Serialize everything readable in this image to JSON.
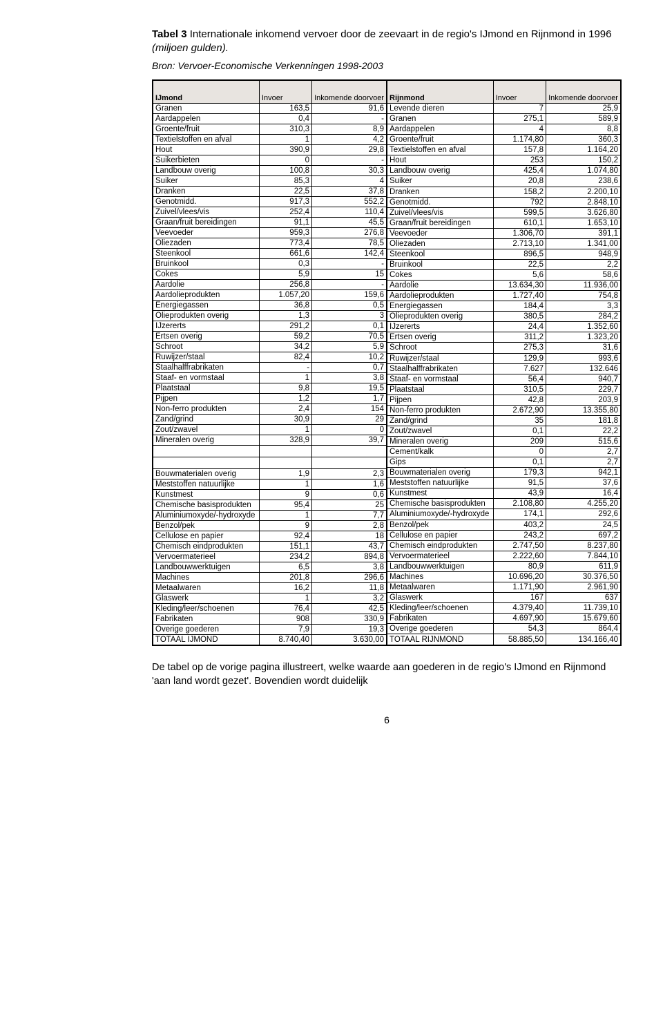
{
  "title_bold": "Tabel 3",
  "title_rest": " Internationale inkomend vervoer door de zeevaart in de regio's IJmond en Rijnmond in 1996 ",
  "title_italic": "(miljoen gulden).",
  "source": "Bron: Vervoer-Economische Verkenningen 1998-2003",
  "headers": {
    "region_left": "IJmond",
    "region_right": "Rijnmond",
    "col_invoer": "Invoer",
    "col_doorvoer": "Inkomende doorvoer"
  },
  "left_rows": [
    [
      "Granen",
      "163,5",
      "91,6"
    ],
    [
      "Aardappelen",
      "0,4",
      "-"
    ],
    [
      "Groente/fruit",
      "310,3",
      "8,9"
    ],
    [
      "Textielstoffen en afval",
      "1",
      "4,2"
    ],
    [
      "Hout",
      "390,9",
      "29,8"
    ],
    [
      "Suikerbieten",
      "0",
      "-"
    ],
    [
      "Landbouw overig",
      "100,8",
      "30,3"
    ],
    [
      "Suiker",
      "85,3",
      "4"
    ],
    [
      "Dranken",
      "22,5",
      "37,8"
    ],
    [
      "Genotmidd.",
      "917,3",
      "552,2"
    ],
    [
      "Zuivel/vlees/vis",
      "252,4",
      "110,4"
    ],
    [
      "Graan/fruit bereidingen",
      "91,1",
      "45,5"
    ],
    [
      "Veevoeder",
      "959,3",
      "276,8"
    ],
    [
      "Oliezaden",
      "773,4",
      "78,5"
    ],
    [
      "Steenkool",
      "661,6",
      "142,4"
    ],
    [
      "Bruinkool",
      "0,3",
      "-"
    ],
    [
      "Cokes",
      "5,9",
      "15"
    ],
    [
      "Aardolie",
      "256,8",
      "-"
    ],
    [
      "Aardolieprodukten",
      "1.057,20",
      "159,6"
    ],
    [
      "Energiegassen",
      "36,8",
      "0,5"
    ],
    [
      "Olieprodukten overig",
      "1,3",
      "3"
    ],
    [
      "IJzererts",
      "291,2",
      "0,1"
    ],
    [
      "Ertsen overig",
      "59,2",
      "70,5"
    ],
    [
      "Schroot",
      "34,2",
      "5,9"
    ],
    [
      "Ruwijzer/staal",
      "82,4",
      "10,2"
    ],
    [
      "Staalhalffrabrikaten",
      "-",
      "0,7"
    ],
    [
      "Staaf- en vormstaal",
      "1",
      "3,8"
    ],
    [
      "Plaatstaal",
      "9,8",
      "19,5"
    ],
    [
      "Pijpen",
      "1,2",
      "1,7"
    ],
    [
      "Non-ferro produkten",
      "2,4",
      "154"
    ],
    [
      "Zand/grind",
      "30,9",
      "29"
    ],
    [
      "Zout/zwavel",
      "1",
      "0"
    ],
    [
      "Mineralen overig",
      "328,9",
      "39,7"
    ],
    [
      "",
      "",
      ""
    ],
    [
      "",
      "",
      ""
    ],
    [
      "Bouwmaterialen overig",
      "1,9",
      "2,3"
    ],
    [
      "Meststoffen natuurlijke",
      "1",
      "1,6"
    ],
    [
      "Kunstmest",
      "9",
      "0,6"
    ],
    [
      "Chemische basisprodukten",
      "95,4",
      "25"
    ],
    [
      "Aluminiumoxyde/-hydroxyde",
      "1",
      "7,7"
    ],
    [
      "Benzol/pek",
      "9",
      "2,8"
    ],
    [
      "Cellulose en papier",
      "92,4",
      "18"
    ],
    [
      "Chemisch eindprodukten",
      "151,1",
      "43,7"
    ],
    [
      "Vervoermaterieel",
      "234,2",
      "894,8"
    ],
    [
      "Landbouwwerktuigen",
      "6,5",
      "3,8"
    ],
    [
      "Machines",
      "201,8",
      "296,6"
    ],
    [
      "Metaalwaren",
      "16,2",
      "11,8"
    ],
    [
      "Glaswerk",
      "1",
      "3,2"
    ],
    [
      "Kleding/leer/schoenen",
      "76,4",
      "42,5"
    ],
    [
      "Fabrikaten",
      "908",
      "330,9"
    ],
    [
      "Overige goederen",
      "7,9",
      "19,3"
    ]
  ],
  "left_total": [
    "TOTAAL IJMOND",
    "8.740,40",
    "3.630,00"
  ],
  "right_rows": [
    [
      "Levende dieren",
      "7",
      "25,9"
    ],
    [
      "Granen",
      "275,1",
      "589,9"
    ],
    [
      "Aardappelen",
      "4",
      "8,8"
    ],
    [
      "Groente/fruit",
      "1.174,80",
      "360,3"
    ],
    [
      "Textielstoffen en afval",
      "157,8",
      "1.164,20"
    ],
    [
      "Hout",
      "253",
      "150,2"
    ],
    [
      "Landbouw overig",
      "425,4",
      "1.074,80"
    ],
    [
      "Suiker",
      "20,8",
      "238,6"
    ],
    [
      "Dranken",
      "158,2",
      "2.200,10"
    ],
    [
      "Genotmidd.",
      "792",
      "2.848,10"
    ],
    [
      "Zuivel/vlees/vis",
      "599,5",
      "3.626,80"
    ],
    [
      "Graan/fruit bereidingen",
      "610,1",
      "1.653,10"
    ],
    [
      "Veevoeder",
      "1.306,70",
      "391,1"
    ],
    [
      "Oliezaden",
      "2.713,10",
      "1.341,00"
    ],
    [
      "Steenkool",
      "896,5",
      "948,9"
    ],
    [
      "Bruinkool",
      "22,5",
      "2,2"
    ],
    [
      "Cokes",
      "5,6",
      "58,6"
    ],
    [
      "Aardolie",
      "13.634,30",
      "11.936,00"
    ],
    [
      "Aardolieprodukten",
      "1.727,40",
      "754,8"
    ],
    [
      "Energiegassen",
      "184,4",
      "3,3"
    ],
    [
      "Olieprodukten overig",
      "380,5",
      "284,2"
    ],
    [
      "IJzererts",
      "24,4",
      "1.352,60"
    ],
    [
      "Ertsen overig",
      "311,2",
      "1.323,20"
    ],
    [
      "Schroot",
      "275,3",
      "31,6"
    ],
    [
      "Ruwijzer/staal",
      "129,9",
      "993,6"
    ],
    [
      "Staalhalffrabrikaten",
      "7.627",
      "132.646"
    ],
    [
      "Staaf- en vormstaal",
      "56,4",
      "940,7"
    ],
    [
      "Plaatstaal",
      "310,5",
      "229,7"
    ],
    [
      "Pijpen",
      "42,8",
      "203,9"
    ],
    [
      "Non-ferro produkten",
      "2.672,90",
      "13.355,80"
    ],
    [
      "Zand/grind",
      "35",
      "181,8"
    ],
    [
      "Zout/zwavel",
      "0,1",
      "22,2"
    ],
    [
      "Mineralen overig",
      "209",
      "515,6"
    ],
    [
      "Cement/kalk",
      "0",
      "2,7"
    ],
    [
      "Gips",
      "0,1",
      "2,7"
    ],
    [
      "Bouwmaterialen overig",
      "179,3",
      "942,1"
    ],
    [
      "Meststoffen natuurlijke",
      "91,5",
      "37,6"
    ],
    [
      "Kunstmest",
      "43,9",
      "16,4"
    ],
    [
      "Chemische basisprodukten",
      "2.108,80",
      "4.255,20"
    ],
    [
      "Aluminiumoxyde/-hydroxyde",
      "174,1",
      "292,6"
    ],
    [
      "Benzol/pek",
      "403,2",
      "24,5"
    ],
    [
      "Cellulose en papier",
      "243,2",
      "697,2"
    ],
    [
      "Chemisch eindprodukten",
      "2.747,50",
      "8.237,80"
    ],
    [
      "Vervoermaterieel",
      "2.222,60",
      "7.844,10"
    ],
    [
      "Landbouwwerktuigen",
      "80,9",
      "611,9"
    ],
    [
      "Machines",
      "10.696,20",
      "30.376,50"
    ],
    [
      "Metaalwaren",
      "1.171,90",
      "2.961,90"
    ],
    [
      "Glaswerk",
      "167",
      "637"
    ],
    [
      "Kleding/leer/schoenen",
      "4.379,40",
      "11.739,10"
    ],
    [
      "Fabrikaten",
      "4.697,90",
      "15.679,60"
    ],
    [
      "Overige goederen",
      "54,3",
      "864,4"
    ]
  ],
  "right_total": [
    "TOTAAL RIJNMOND",
    "58.885,50",
    "134.166,40"
  ],
  "caption": "De tabel op de vorige pagina illustreert, welke waarde aan goederen in de regio's IJmond en Rijnmond 'aan land wordt gezet'. Bovendien wordt duidelijk",
  "page_number": "6"
}
